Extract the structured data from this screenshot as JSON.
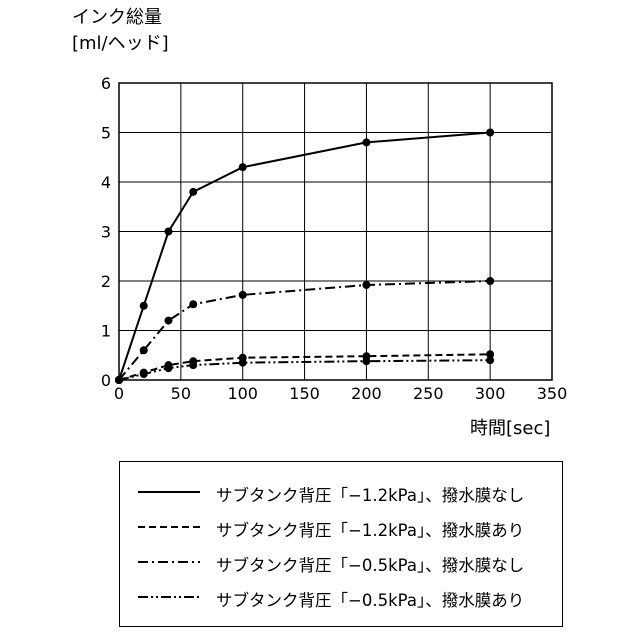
{
  "chart_data": {
    "type": "line",
    "ylabel": "インク総量",
    "yunit": "[ml/ヘッド]",
    "xlabel": "時間[sec]",
    "xlim": [
      0,
      350
    ],
    "ylim": [
      0,
      6
    ],
    "xticks": [
      0,
      50,
      100,
      150,
      200,
      250,
      300,
      350
    ],
    "yticks": [
      0,
      1,
      2,
      3,
      4,
      5,
      6
    ],
    "grid": true,
    "legend_position": "below",
    "series": [
      {
        "name": "サブタンク背圧「−1.2kPa」、撥水膜なし",
        "style": "solid",
        "x": [
          0,
          20,
          40,
          60,
          100,
          200,
          300
        ],
        "y": [
          0,
          1.5,
          3.0,
          3.8,
          4.3,
          4.8,
          5.0
        ]
      },
      {
        "name": "サブタンク背圧「−1.2kPa」、撥水膜あり",
        "style": "dashed",
        "x": [
          0,
          20,
          40,
          60,
          100,
          200,
          300
        ],
        "y": [
          0,
          0.15,
          0.3,
          0.38,
          0.45,
          0.48,
          0.52
        ]
      },
      {
        "name": "サブタンク背圧「−0.5kPa」、撥水膜なし",
        "style": "dashdot",
        "x": [
          0,
          20,
          40,
          60,
          100,
          200,
          300
        ],
        "y": [
          0,
          0.6,
          1.2,
          1.53,
          1.72,
          1.92,
          2.0
        ]
      },
      {
        "name": "サブタンク背圧「−0.5kPa」、撥水膜あり",
        "style": "dashdotdot",
        "x": [
          0,
          20,
          40,
          60,
          100,
          200,
          300
        ],
        "y": [
          0,
          0.12,
          0.24,
          0.3,
          0.35,
          0.38,
          0.4
        ]
      }
    ]
  }
}
